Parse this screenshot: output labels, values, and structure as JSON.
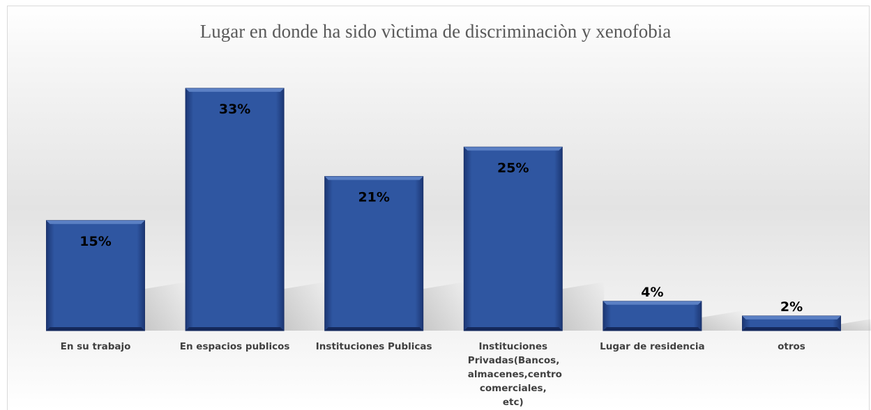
{
  "chart_data": {
    "type": "bar",
    "title": "Lugar en donde ha sido vìctima de discriminaciòn y xenofobia",
    "xlabel": "",
    "ylabel": "",
    "categories": [
      "En su trabajo",
      "En espacios publicos",
      "Instituciones Publicas",
      "Instituciones Privadas(Bancos, almacenes,centro comerciales, etc)",
      "Lugar de residencia",
      "otros"
    ],
    "values": [
      15,
      33,
      21,
      25,
      4,
      2
    ],
    "data_labels": [
      "15%",
      "33%",
      "21%",
      "25%",
      "4%",
      "2%"
    ],
    "ylim": [
      0,
      35
    ],
    "grid": false,
    "legend": "none",
    "colors": {
      "bar": "#2f56a1",
      "bar_dark": "#1c3774",
      "bar_light": "#5b80c4"
    }
  }
}
